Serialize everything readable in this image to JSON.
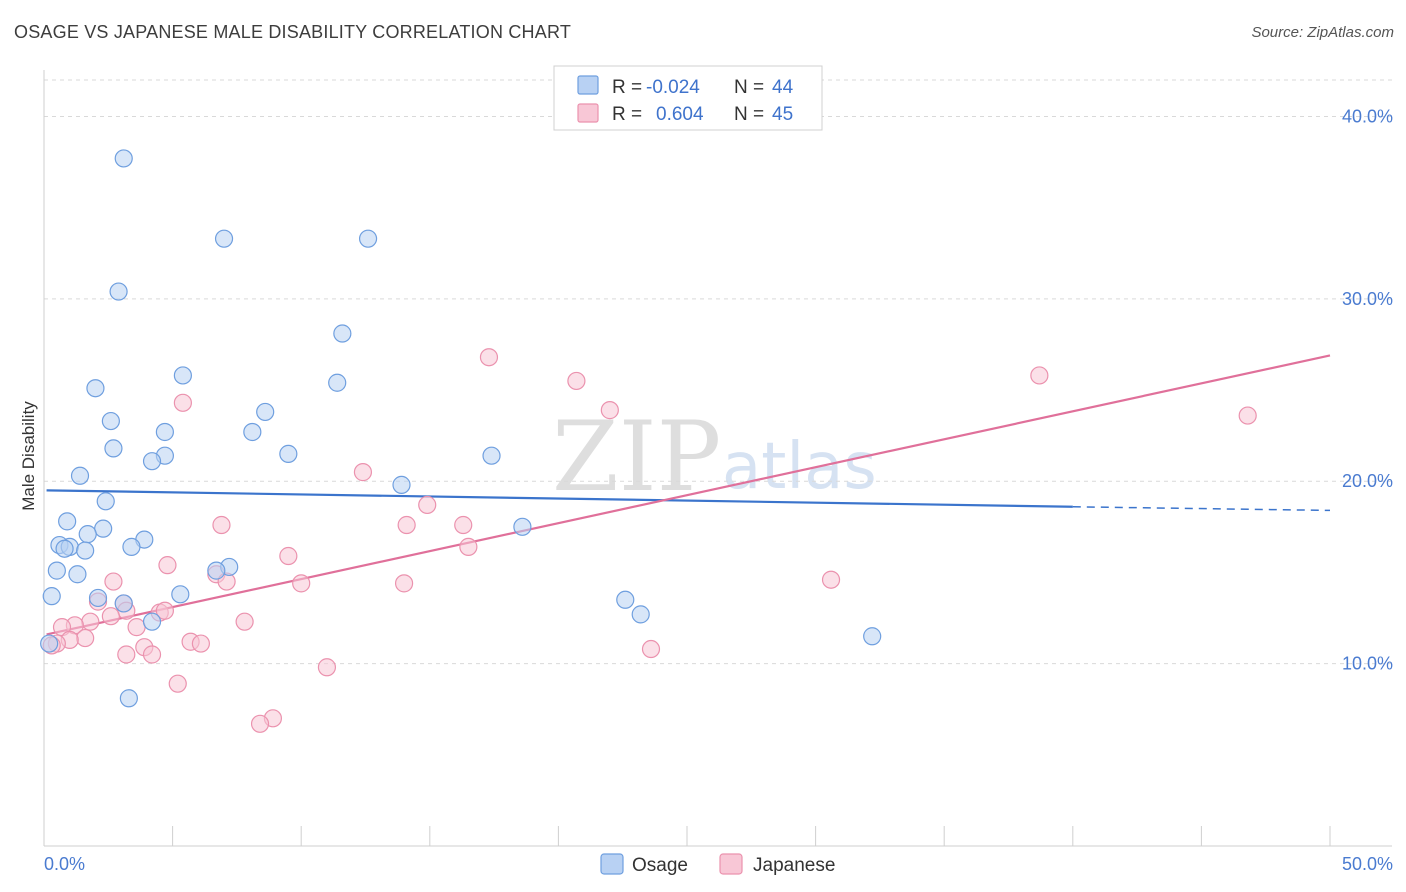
{
  "title": "OSAGE VS JAPANESE MALE DISABILITY CORRELATION CHART",
  "source": "Source: ZipAtlas.com",
  "watermark": {
    "zip": "ZIP",
    "atlas": "atlas"
  },
  "colors": {
    "osage_fill": "#b8d1f3",
    "osage_stroke": "#6f9fdf",
    "osage_line": "#3b74cc",
    "japanese_fill": "#f8c7d6",
    "japanese_stroke": "#eb92ae",
    "japanese_line": "#e0709a",
    "grid": "#d9d9d9",
    "tick_text": "#4a7bd0"
  },
  "legend": {
    "rows": [
      {
        "r_label": "R =",
        "r_value": "-0.024",
        "n_label": "N =",
        "n_value": "44",
        "series": "osage"
      },
      {
        "r_label": "R =",
        "r_value": "0.604",
        "n_label": "N =",
        "n_value": "45",
        "series": "japanese"
      }
    ]
  },
  "chart_data": {
    "type": "scatter",
    "title": "OSAGE VS JAPANESE MALE DISABILITY CORRELATION CHART",
    "xlabel": "",
    "ylabel": "Male Disability",
    "xlim": [
      0,
      50
    ],
    "ylim": [
      0,
      42
    ],
    "x_tick_labels": [
      "0.0%",
      "50.0%"
    ],
    "y_ticks": [
      10,
      20,
      30,
      40
    ],
    "y_tick_labels": [
      "10.0%",
      "20.0%",
      "30.0%",
      "40.0%"
    ],
    "grid": true,
    "legend_position": "top-center",
    "series": [
      {
        "name": "Osage",
        "r": -0.024,
        "n": 44,
        "trend": {
          "x0": 0.1,
          "y0": 19.5,
          "x1": 40,
          "y1": 18.6,
          "dash_to_x": 50,
          "dash_to_y": 18.4
        },
        "points": [
          [
            3.1,
            37.7
          ],
          [
            7.0,
            33.3
          ],
          [
            12.6,
            33.3
          ],
          [
            2.9,
            30.4
          ],
          [
            11.6,
            28.1
          ],
          [
            5.4,
            25.8
          ],
          [
            11.4,
            25.4
          ],
          [
            2.0,
            25.1
          ],
          [
            8.6,
            23.8
          ],
          [
            2.6,
            23.3
          ],
          [
            4.7,
            22.7
          ],
          [
            8.1,
            22.7
          ],
          [
            2.7,
            21.8
          ],
          [
            9.5,
            21.5
          ],
          [
            4.7,
            21.4
          ],
          [
            4.2,
            21.1
          ],
          [
            17.4,
            21.4
          ],
          [
            1.4,
            20.3
          ],
          [
            13.9,
            19.8
          ],
          [
            2.4,
            18.9
          ],
          [
            0.9,
            17.8
          ],
          [
            2.3,
            17.4
          ],
          [
            1.7,
            17.1
          ],
          [
            18.6,
            17.5
          ],
          [
            3.9,
            16.8
          ],
          [
            0.6,
            16.5
          ],
          [
            1.0,
            16.4
          ],
          [
            0.8,
            16.3
          ],
          [
            3.4,
            16.4
          ],
          [
            1.6,
            16.2
          ],
          [
            0.5,
            15.1
          ],
          [
            1.3,
            14.9
          ],
          [
            7.2,
            15.3
          ],
          [
            6.7,
            15.1
          ],
          [
            0.3,
            13.7
          ],
          [
            2.1,
            13.6
          ],
          [
            5.3,
            13.8
          ],
          [
            3.1,
            13.3
          ],
          [
            22.6,
            13.5
          ],
          [
            23.2,
            12.7
          ],
          [
            4.2,
            12.3
          ],
          [
            32.2,
            11.5
          ],
          [
            0.2,
            11.1
          ],
          [
            3.3,
            8.1
          ]
        ]
      },
      {
        "name": "Japanese",
        "r": 0.604,
        "n": 45,
        "trend": {
          "x0": 0.1,
          "y0": 11.6,
          "x1": 50,
          "y1": 26.9
        },
        "points": [
          [
            17.3,
            26.8
          ],
          [
            20.7,
            25.5
          ],
          [
            38.7,
            25.8
          ],
          [
            46.8,
            23.6
          ],
          [
            5.4,
            24.3
          ],
          [
            22.0,
            23.9
          ],
          [
            12.4,
            20.5
          ],
          [
            14.9,
            18.7
          ],
          [
            6.9,
            17.6
          ],
          [
            14.1,
            17.6
          ],
          [
            16.3,
            17.6
          ],
          [
            16.5,
            16.4
          ],
          [
            9.5,
            15.9
          ],
          [
            4.8,
            15.4
          ],
          [
            6.7,
            14.9
          ],
          [
            7.1,
            14.5
          ],
          [
            10.0,
            14.4
          ],
          [
            14.0,
            14.4
          ],
          [
            30.6,
            14.6
          ],
          [
            2.7,
            14.5
          ],
          [
            3.1,
            13.3
          ],
          [
            2.1,
            13.4
          ],
          [
            4.5,
            12.8
          ],
          [
            4.7,
            12.9
          ],
          [
            3.2,
            12.9
          ],
          [
            2.6,
            12.6
          ],
          [
            1.8,
            12.3
          ],
          [
            1.2,
            12.1
          ],
          [
            0.7,
            12.0
          ],
          [
            7.8,
            12.3
          ],
          [
            3.6,
            12.0
          ],
          [
            1.6,
            11.4
          ],
          [
            1.0,
            11.3
          ],
          [
            0.5,
            11.1
          ],
          [
            0.3,
            11.0
          ],
          [
            5.7,
            11.2
          ],
          [
            6.1,
            11.1
          ],
          [
            3.9,
            10.9
          ],
          [
            3.2,
            10.5
          ],
          [
            4.2,
            10.5
          ],
          [
            23.6,
            10.8
          ],
          [
            11.0,
            9.8
          ],
          [
            5.2,
            8.9
          ],
          [
            8.9,
            7.0
          ],
          [
            8.4,
            6.7
          ]
        ]
      }
    ]
  },
  "bottom_legend": {
    "items": [
      {
        "label": "Osage"
      },
      {
        "label": "Japanese"
      }
    ]
  }
}
